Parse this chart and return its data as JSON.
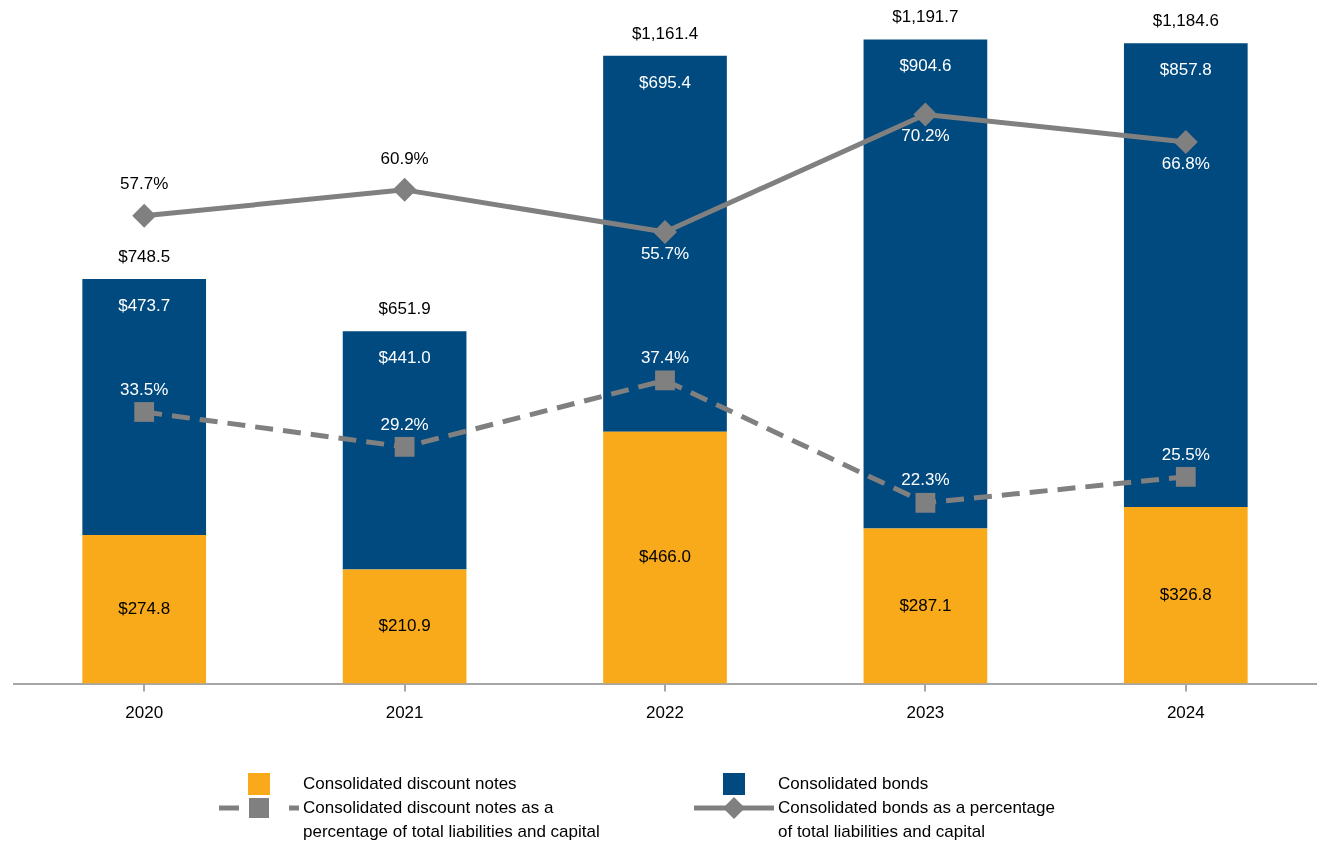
{
  "chart_data": {
    "type": "bar",
    "stacked": true,
    "categories": [
      "2020",
      "2021",
      "2022",
      "2023",
      "2024"
    ],
    "series": [
      {
        "name": "Consolidated discount notes",
        "color": "#f8aa1a",
        "values": [
          274.8,
          210.9,
          466.0,
          287.1,
          326.8
        ],
        "value_labels": [
          "$274.8",
          "$210.9",
          "$466.0",
          "$287.1",
          "$326.8"
        ]
      },
      {
        "name": "Consolidated bonds",
        "color": "#004a7f",
        "values": [
          473.7,
          441.0,
          695.4,
          904.6,
          857.8
        ],
        "value_labels": [
          "$473.7",
          "$441.0",
          "$695.4",
          "$904.6",
          "$857.8"
        ]
      },
      {
        "name": "Consolidated discount notes as a percentage of total liabilities and capital",
        "type": "line",
        "axis": "y2",
        "color": "#808080",
        "marker": "square",
        "line_style": "dashed",
        "values": [
          33.5,
          29.2,
          37.4,
          22.3,
          25.5
        ],
        "value_labels": [
          "33.5%",
          "29.2%",
          "37.4%",
          "22.3%",
          "25.5%"
        ]
      },
      {
        "name": "Consolidated bonds as a percentage of total liabilities and capital",
        "type": "line",
        "axis": "y2",
        "color": "#808080",
        "marker": "diamond",
        "line_style": "solid",
        "values": [
          57.7,
          60.9,
          55.7,
          70.2,
          66.8
        ],
        "value_labels": [
          "57.7%",
          "60.9%",
          "55.7%",
          "70.2%",
          "66.8%"
        ]
      }
    ],
    "totals": [
      "$748.5",
      "$651.9",
      "$1,161.4",
      "$1,191.7",
      "$1,184.6"
    ],
    "legend": "bottom",
    "tick_labels": "x"
  }
}
